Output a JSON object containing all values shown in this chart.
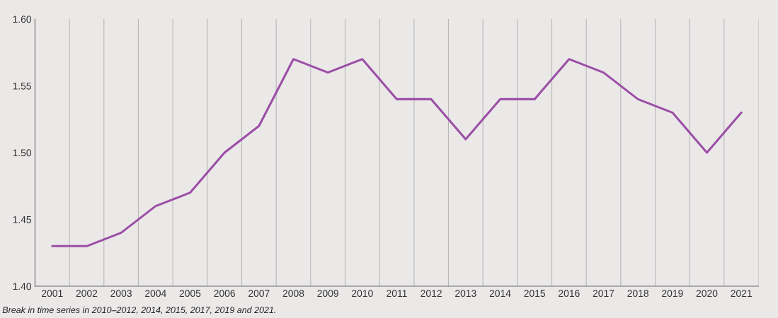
{
  "chart_data": {
    "type": "line",
    "categories": [
      "2001",
      "2002",
      "2003",
      "2004",
      "2005",
      "2006",
      "2007",
      "2008",
      "2009",
      "2010",
      "2011",
      "2012",
      "2013",
      "2014",
      "2015",
      "2016",
      "2017",
      "2018",
      "2019",
      "2020",
      "2021"
    ],
    "series": [
      {
        "color": "#9b4fa6",
        "values": [
          1.43,
          1.43,
          1.44,
          1.46,
          1.47,
          1.5,
          1.52,
          1.57,
          1.56,
          1.57,
          1.54,
          1.54,
          1.51,
          1.54,
          1.54,
          1.57,
          1.56,
          1.54,
          1.53,
          1.5,
          1.53
        ]
      }
    ],
    "ylim": [
      1.4,
      1.6
    ],
    "yticks": [
      {
        "value": 1.4,
        "label": "1.40"
      },
      {
        "value": 1.45,
        "label": "1.45"
      },
      {
        "value": 1.5,
        "label": "1.50"
      },
      {
        "value": 1.55,
        "label": "1.55"
      },
      {
        "value": 1.6,
        "label": "1.60"
      }
    ],
    "grid": "x",
    "legend": false,
    "marker": "none",
    "line_style": "solid",
    "annotations": [
      "Break in time series in 2010–2012, 2014, 2015, 2017, 2019 and 2021."
    ]
  }
}
